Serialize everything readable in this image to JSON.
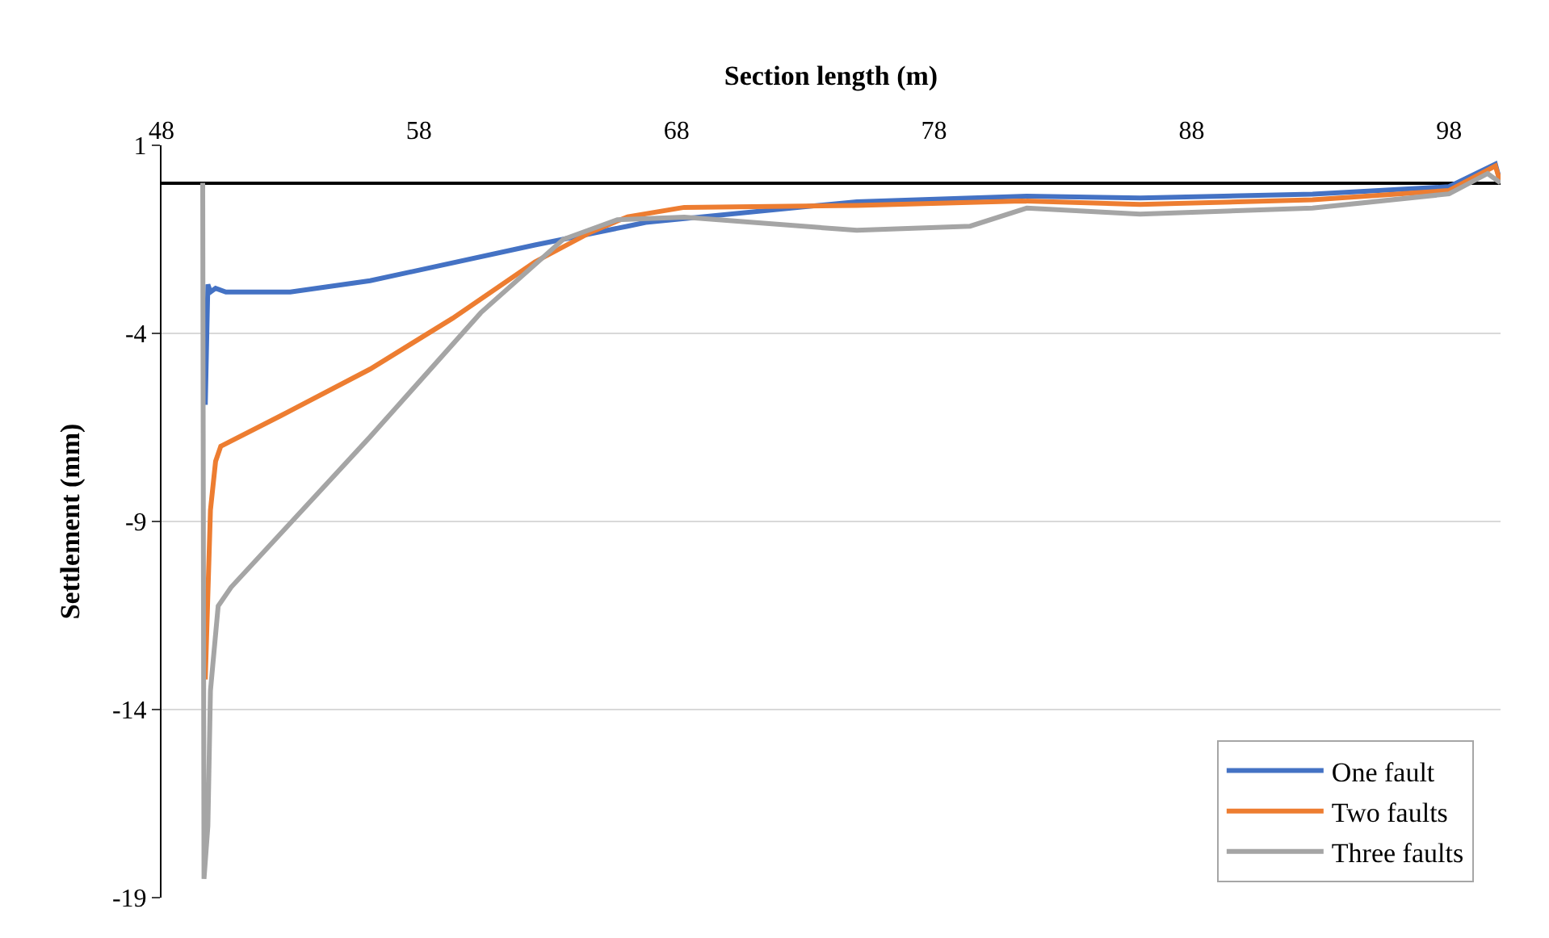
{
  "chart_data": {
    "type": "line",
    "xlabel": "Section length (m)",
    "ylabel": "Settlement (mm)",
    "xlim": [
      48,
      100
    ],
    "xticks": [
      48,
      58,
      68,
      78,
      88,
      98
    ],
    "ylim": [
      -19,
      1
    ],
    "yticks": [
      1,
      -4,
      -9,
      -14,
      -19
    ],
    "grid": "y",
    "legend": "bottom right",
    "marker": "none",
    "line_style": "solid",
    "series": [
      {
        "name": "One fault",
        "color": "#4472c4",
        "x": [
          49.7,
          49.8,
          49.9,
          50.1,
          50.5,
          53,
          56.1,
          62.5,
          66.1,
          66.8,
          75,
          81.6,
          86,
          92.7,
          98,
          99.8,
          100
        ],
        "values": [
          -5.9,
          -2.7,
          -2.9,
          -2.8,
          -2.9,
          -2.9,
          -2.6,
          -1.65,
          -1.15,
          -1.05,
          -0.5,
          -0.35,
          -0.4,
          -0.3,
          -0.1,
          0.5,
          0.0
        ]
      },
      {
        "name": "Two faults",
        "color": "#ed7d31",
        "x": [
          49.7,
          49.9,
          50.1,
          50.3,
          52.6,
          56.1,
          59.3,
          62.5,
          64.7,
          66.1,
          68.3,
          75,
          81.4,
          86,
          92.7,
          98,
          99.8,
          100
        ],
        "values": [
          -13.2,
          -8.7,
          -7.4,
          -7.0,
          -6.2,
          -4.95,
          -3.6,
          -2.1,
          -1.3,
          -0.9,
          -0.65,
          -0.6,
          -0.48,
          -0.57,
          -0.45,
          -0.2,
          0.45,
          0.0
        ]
      },
      {
        "name": "Three faults",
        "color": "#a5a5a5",
        "x": [
          49.6,
          49.65,
          49.8,
          49.9,
          50.2,
          50.7,
          56.1,
          60.4,
          63.6,
          65.7,
          68.3,
          75,
          79.4,
          81.6,
          86,
          92.7,
          98,
          99.5,
          100
        ],
        "values": [
          0,
          -18.5,
          -17.1,
          -13.5,
          -11.25,
          -10.75,
          -6.75,
          -3.45,
          -1.5,
          -0.98,
          -0.91,
          -1.26,
          -1.15,
          -0.67,
          -0.83,
          -0.67,
          -0.29,
          0.25,
          0.0
        ]
      }
    ]
  }
}
